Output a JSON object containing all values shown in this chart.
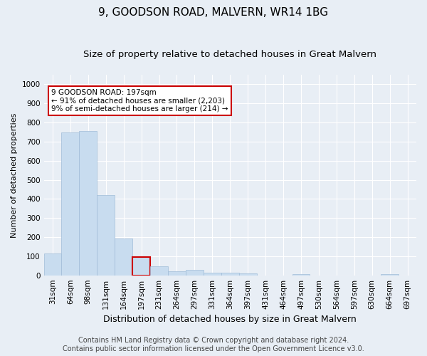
{
  "title": "9, GOODSON ROAD, MALVERN, WR14 1BG",
  "subtitle": "Size of property relative to detached houses in Great Malvern",
  "xlabel": "Distribution of detached houses by size in Great Malvern",
  "ylabel": "Number of detached properties",
  "categories": [
    "31sqm",
    "64sqm",
    "98sqm",
    "131sqm",
    "164sqm",
    "197sqm",
    "231sqm",
    "264sqm",
    "297sqm",
    "331sqm",
    "364sqm",
    "397sqm",
    "431sqm",
    "464sqm",
    "497sqm",
    "530sqm",
    "564sqm",
    "597sqm",
    "630sqm",
    "664sqm",
    "697sqm"
  ],
  "values": [
    113,
    748,
    757,
    420,
    192,
    97,
    47,
    22,
    27,
    15,
    12,
    10,
    0,
    0,
    8,
    0,
    0,
    0,
    0,
    8,
    0
  ],
  "highlight_index": 5,
  "bar_color": "#c8dcef",
  "bar_edge_color": "#a0bcd8",
  "highlight_bar_edge_color": "#cc0000",
  "annotation_text": "9 GOODSON ROAD: 197sqm\n← 91% of detached houses are smaller (2,203)\n9% of semi-detached houses are larger (214) →",
  "annotation_box_facecolor": "#ffffff",
  "annotation_box_edgecolor": "#cc0000",
  "footer_line1": "Contains HM Land Registry data © Crown copyright and database right 2024.",
  "footer_line2": "Contains public sector information licensed under the Open Government Licence v3.0.",
  "ylim": [
    0,
    1050
  ],
  "yticks": [
    0,
    100,
    200,
    300,
    400,
    500,
    600,
    700,
    800,
    900,
    1000
  ],
  "fig_background_color": "#e8eef5",
  "plot_background_color": "#e8eef5",
  "title_fontsize": 11,
  "subtitle_fontsize": 9.5,
  "xlabel_fontsize": 9,
  "ylabel_fontsize": 8,
  "tick_fontsize": 7.5,
  "footer_fontsize": 7
}
